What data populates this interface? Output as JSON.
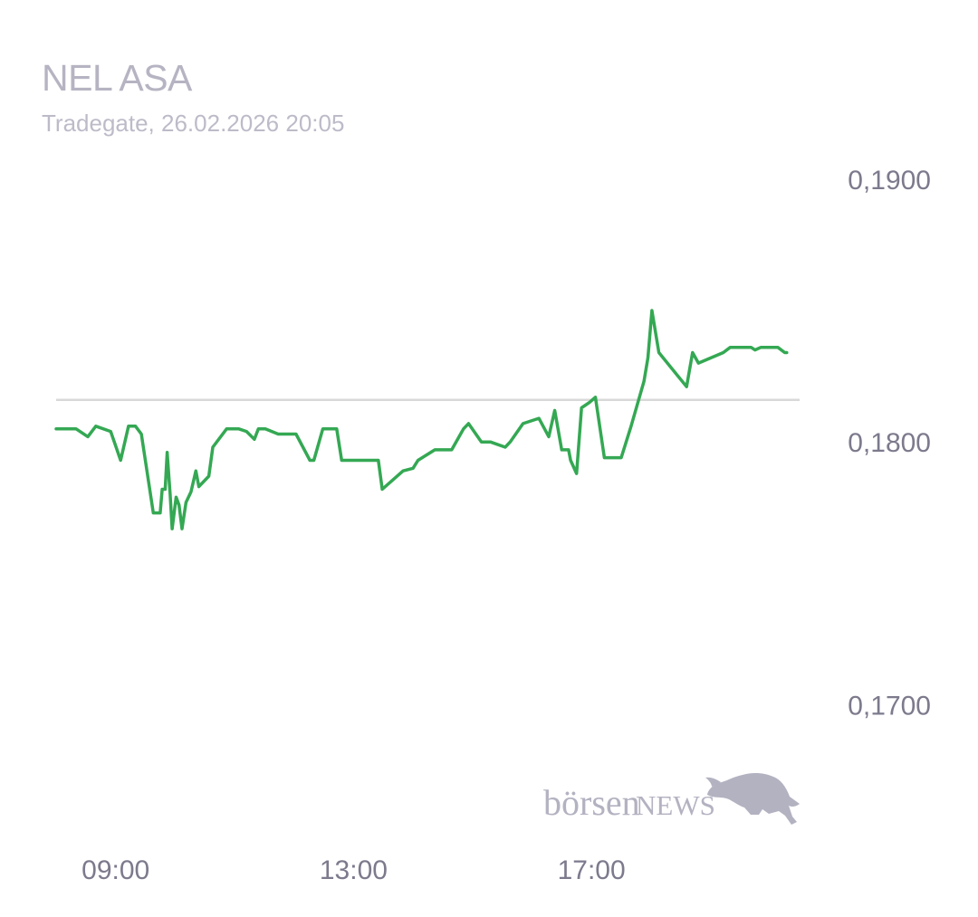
{
  "header": {
    "title": "NEL ASA",
    "subtitle": "Tradegate, 26.02.2026 20:05"
  },
  "colors": {
    "line": "#34a853",
    "reference_line": "#d8d8d8",
    "tick_text": "#7c7a8c",
    "title_text": "#b6b4c2",
    "logo": "#b3b2c1"
  },
  "logo": {
    "text_part1": "börsen",
    "text_part2": "NEWS",
    "icon": "bull-icon"
  },
  "chart_data": {
    "type": "line",
    "title": "NEL ASA",
    "subtitle": "Tradegate, 26.02.2026 20:05",
    "ylim": [
      0.1672,
      0.1913
    ],
    "y_ticks": [
      0.19,
      0.18,
      0.17
    ],
    "y_tick_labels": [
      "0,1900",
      "0,1800",
      "0,1700"
    ],
    "x_ticks": [
      "09:00",
      "13:00",
      "17:00"
    ],
    "xlim": [
      "08:00",
      "20:30"
    ],
    "reference_value": 0.1816,
    "grid": false,
    "series": [
      {
        "x": [
          "08:00",
          "08:20",
          "08:32",
          "08:40",
          "08:55",
          "09:05",
          "09:13",
          "09:20",
          "09:26",
          "09:38",
          "09:45",
          "09:47",
          "09:50",
          "09:52",
          "09:55",
          "09:57",
          "10:01",
          "10:04",
          "10:07",
          "10:11",
          "10:16",
          "10:21",
          "10:24",
          "10:34",
          "10:38",
          "10:52",
          "11:04",
          "11:12",
          "11:20",
          "11:24",
          "11:31",
          "11:44",
          "11:48",
          "11:49",
          "12:02",
          "12:16",
          "12:20",
          "12:29",
          "12:43",
          "12:48",
          "12:56",
          "13:02",
          "13:25",
          "13:29",
          "13:50",
          "14:00",
          "14:05",
          "14:22",
          "14:39",
          "14:51",
          "14:56",
          "15:09",
          "15:18",
          "15:33",
          "15:38",
          "15:51",
          "16:07",
          "16:17",
          "16:23",
          "16:30",
          "16:32",
          "16:36",
          "16:37",
          "16:39",
          "16:45",
          "16:50",
          "16:58",
          "17:04",
          "17:13",
          "17:30",
          "17:40",
          "17:53",
          "17:57",
          "18:01",
          "18:08",
          "18:36",
          "18:42",
          "18:48",
          "19:13",
          "19:20",
          "19:26",
          "19:41",
          "19:45",
          "19:51",
          "20:08",
          "20:15",
          "20:17"
        ],
        "y": [
          0.1805,
          0.1805,
          0.1802,
          0.1806,
          0.1804,
          0.1793,
          0.1806,
          0.1806,
          0.1803,
          0.1773,
          0.1773,
          0.1782,
          0.1782,
          0.1796,
          0.178,
          0.1767,
          0.1779,
          0.1776,
          0.1767,
          0.1777,
          0.1781,
          0.1789,
          0.1783,
          0.1787,
          0.1798,
          0.1805,
          0.1805,
          0.1804,
          0.1801,
          0.1805,
          0.1805,
          0.1803,
          0.1803,
          0.1803,
          0.1803,
          0.1793,
          0.1793,
          0.1805,
          0.1805,
          0.1793,
          0.1793,
          0.1793,
          0.1793,
          0.1782,
          0.1789,
          0.179,
          0.1793,
          0.1797,
          0.1797,
          0.1805,
          0.1807,
          0.18,
          0.18,
          0.1798,
          0.18,
          0.1807,
          0.1809,
          0.1802,
          0.1812,
          0.1797,
          0.1797,
          0.1797,
          0.1797,
          0.1793,
          0.1788,
          0.1813,
          0.1815,
          0.1817,
          0.1794,
          0.1794,
          0.1806,
          0.1823,
          0.1832,
          0.185,
          0.1834,
          0.1821,
          0.1834,
          0.183,
          0.1834,
          0.1836,
          0.1836,
          0.1836,
          0.1835,
          0.1836,
          0.1836,
          0.1834,
          0.1834
        ],
        "note_values_are_prices": true
      }
    ]
  }
}
